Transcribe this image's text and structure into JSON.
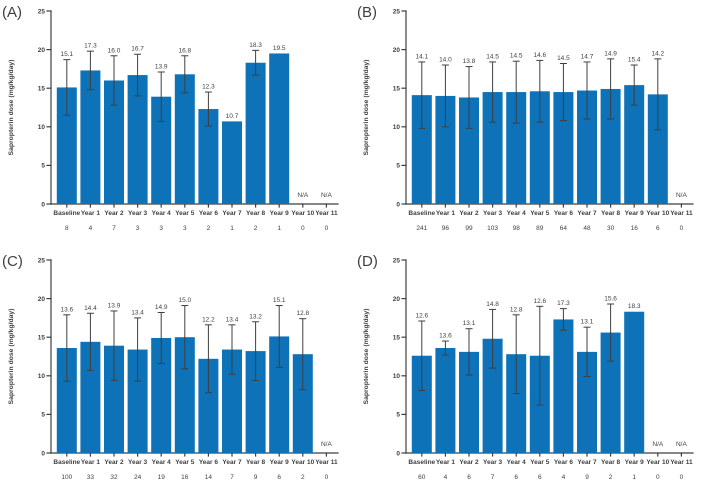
{
  "figure": {
    "ylabel": "Sapropterin dose (mg/kg/day)",
    "n_row_label": "n",
    "na_label": "N/A",
    "bar_color": "#0e72b8",
    "axis_color": "#3f3f3f",
    "error_color": "#3f3f3f",
    "text_color": "#3f3f3f",
    "yticks": [
      0,
      5,
      10,
      15,
      20,
      25
    ],
    "ylim": [
      0,
      25
    ],
    "categories": [
      "Baseline",
      "Year 1",
      "Year 2",
      "Year 3",
      "Year 4",
      "Year 5",
      "Year 6",
      "Year 7",
      "Year 8",
      "Year 9",
      "Year 10",
      "Year 11"
    ]
  },
  "chart_data": [
    {
      "type": "bar",
      "panel_label": "(A)",
      "title": "",
      "xlabel": "",
      "ylabel": "Sapropterin dose (mg/kg/day)",
      "ylim": [
        0,
        25
      ],
      "categories": [
        "Baseline",
        "Year 1",
        "Year 2",
        "Year 3",
        "Year 4",
        "Year 5",
        "Year 6",
        "Year 7",
        "Year 8",
        "Year 9",
        "Year 10",
        "Year 11"
      ],
      "values": [
        15.1,
        17.3,
        16.0,
        16.7,
        13.9,
        16.8,
        12.3,
        10.7,
        18.3,
        19.5,
        null,
        null
      ],
      "errors": [
        3.6,
        2.5,
        3.2,
        2.7,
        3.2,
        2.4,
        2.2,
        null,
        1.6,
        null,
        null,
        null
      ],
      "n": [
        8,
        4,
        7,
        3,
        3,
        3,
        2,
        1,
        2,
        1,
        0,
        0
      ]
    },
    {
      "type": "bar",
      "panel_label": "(B)",
      "title": "",
      "xlabel": "",
      "ylabel": "Sapropterin dose (mg/kg/day)",
      "ylim": [
        0,
        25
      ],
      "categories": [
        "Baseline",
        "Year 1",
        "Year 2",
        "Year 3",
        "Year 4",
        "Year 5",
        "Year 6",
        "Year 7",
        "Year 8",
        "Year 9",
        "Year 10",
        "Year 11"
      ],
      "values": [
        14.1,
        14.0,
        13.8,
        14.5,
        14.5,
        14.6,
        14.5,
        14.7,
        14.9,
        15.4,
        14.2,
        null
      ],
      "errors": [
        4.3,
        4.0,
        4.0,
        3.9,
        4.0,
        4.0,
        3.7,
        3.7,
        3.9,
        2.6,
        4.6,
        null
      ],
      "n": [
        241,
        96,
        99,
        103,
        98,
        89,
        64,
        48,
        30,
        16,
        6,
        0
      ]
    },
    {
      "type": "bar",
      "panel_label": "(C)",
      "title": "",
      "xlabel": "",
      "ylabel": "Sapropterin dose (mg/kg/day)",
      "ylim": [
        0,
        25
      ],
      "categories": [
        "Baseline",
        "Year 1",
        "Year 2",
        "Year 3",
        "Year 4",
        "Year 5",
        "Year 6",
        "Year 7",
        "Year 8",
        "Year 9",
        "Year 10",
        "Year 11"
      ],
      "values": [
        13.6,
        14.4,
        13.9,
        13.4,
        14.9,
        15.0,
        12.2,
        13.4,
        13.2,
        15.1,
        12.8,
        null
      ],
      "errors": [
        4.3,
        3.7,
        4.5,
        4.1,
        3.3,
        4.1,
        4.4,
        3.2,
        3.8,
        4.0,
        4.6,
        null
      ],
      "n": [
        100,
        33,
        32,
        24,
        19,
        16,
        14,
        7,
        9,
        6,
        2,
        0
      ]
    },
    {
      "type": "bar",
      "panel_label": "(D)",
      "title": "",
      "xlabel": "",
      "ylabel": "Sapropterin dose (mg/kg/day)",
      "ylim": [
        0,
        25
      ],
      "categories": [
        "Baseline",
        "Year 1",
        "Year 2",
        "Year 3",
        "Year 4",
        "Year 5",
        "Year 6",
        "Year 7",
        "Year 8",
        "Year 9",
        "Year 10",
        "Year 11"
      ],
      "values": [
        12.6,
        13.6,
        13.1,
        14.8,
        12.8,
        12.6,
        17.3,
        13.1,
        15.6,
        18.3,
        null,
        null
      ],
      "errors": [
        4.5,
        0.9,
        3.0,
        3.8,
        5.1,
        6.4,
        1.4,
        3.2,
        3.7,
        null,
        null,
        null
      ],
      "n": [
        60,
        4,
        6,
        7,
        6,
        6,
        4,
        9,
        2,
        1,
        0,
        0
      ]
    }
  ]
}
